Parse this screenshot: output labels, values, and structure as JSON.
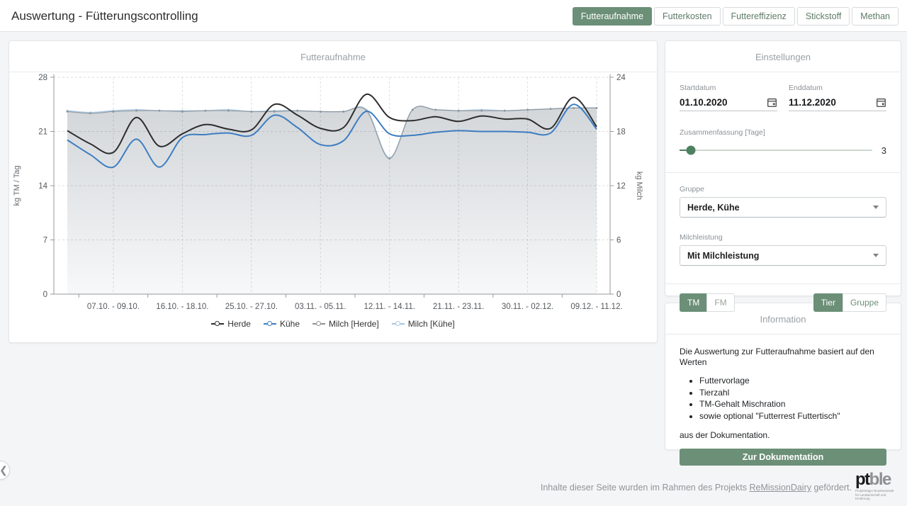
{
  "header": {
    "title": "Auswertung - Fütterungscontrolling",
    "tabs": [
      {
        "label": "Futteraufnahme",
        "active": true
      },
      {
        "label": "Futterkosten",
        "active": false
      },
      {
        "label": "Futtereffizienz",
        "active": false
      },
      {
        "label": "Stickstoff",
        "active": false
      },
      {
        "label": "Methan",
        "active": false
      }
    ]
  },
  "chart": {
    "title": "Futteraufnahme"
  },
  "chart_data": {
    "type": "line",
    "title": "Futteraufnahme",
    "ylabel_left": "kg TM / Tag",
    "ylabel_right": "kg Milch",
    "ylim_left": [
      0,
      28
    ],
    "yticks_left": [
      0,
      7,
      14,
      21,
      28
    ],
    "ylim_right": [
      0,
      24
    ],
    "yticks_right": [
      0,
      6,
      12,
      18,
      24
    ],
    "x_bins": 24,
    "x_tick_indices": [
      2,
      5,
      8,
      11,
      14,
      17,
      20,
      23
    ],
    "x_tick_labels": [
      "07.10. - 09.10.",
      "16.10. - 18.10.",
      "25.10. - 27.10.",
      "03.11. - 05.11.",
      "12.11. - 14.11.",
      "21.11. - 23.11.",
      "30.11. - 02.12.",
      "09.12. - 11.12."
    ],
    "grid": true,
    "legend_position": "bottom",
    "series": [
      {
        "name": "Herde",
        "axis": "left",
        "color": "#2d2d2d",
        "width": 2,
        "dots": false,
        "fill": null,
        "values": [
          21.1,
          19.4,
          18.3,
          22.8,
          19.1,
          20.7,
          21.9,
          21.3,
          21.2,
          24.5,
          23.1,
          21.4,
          21.5,
          25.8,
          22.8,
          22.4,
          22.9,
          22.3,
          23.0,
          22.6,
          22.6,
          21.4,
          25.4,
          21.6
        ]
      },
      {
        "name": "Kühe",
        "axis": "left",
        "color": "#3d7dc1",
        "width": 2,
        "dots": false,
        "fill": null,
        "values": [
          19.9,
          18.0,
          16.4,
          20.0,
          16.4,
          20.2,
          20.6,
          20.8,
          20.5,
          23.1,
          21.5,
          19.3,
          19.8,
          23.6,
          20.7,
          20.5,
          20.9,
          21.1,
          21.0,
          21.0,
          20.9,
          20.8,
          24.5,
          21.3
        ]
      },
      {
        "name": "Milch [Herde]",
        "axis": "right",
        "color": "#8f9499",
        "width": 1,
        "dots": true,
        "fill": "gradGray",
        "values": [
          20.2,
          20.0,
          20.2,
          20.3,
          20.3,
          20.2,
          20.3,
          20.3,
          20.2,
          20.2,
          20.3,
          20.2,
          20.2,
          20.3,
          15.0,
          20.4,
          20.4,
          20.3,
          20.3,
          20.3,
          20.4,
          20.5,
          20.6,
          20.6
        ]
      },
      {
        "name": "Milch [Kühe]",
        "axis": "right",
        "color": "#a9c7e3",
        "width": 1.5,
        "dots": true,
        "fill": "gradBlue",
        "values": [
          20.3,
          20.1,
          20.3,
          20.4,
          20.3,
          20.3,
          20.3,
          20.4,
          20.2,
          20.3,
          20.3,
          20.2,
          20.2,
          20.4,
          15.1,
          20.4,
          20.4,
          20.3,
          20.4,
          20.3,
          20.4,
          20.5,
          20.6,
          20.6
        ]
      }
    ]
  },
  "settings": {
    "title": "Einstellungen",
    "start_label": "Startdatum",
    "start_value": "01.10.2020",
    "end_label": "Enddatum",
    "end_value": "11.12.2020",
    "summary_label": "Zusammenfassung [Tage]",
    "summary_value": "3",
    "group_label": "Gruppe",
    "group_value": "Herde, Kühe",
    "milk_label": "Milchleistung",
    "milk_value": "Mit Milchleistung",
    "toggle_tm": "TM",
    "toggle_fm": "FM",
    "toggle_tier": "Tier",
    "toggle_gruppe": "Gruppe"
  },
  "info": {
    "title": "Information",
    "intro": "Die Auswertung zur Futteraufnahme basiert auf den Werten",
    "bullets": [
      "Futtervorlage",
      "Tierzahl",
      "TM-Gehalt Mischration",
      "sowie optional \"Futterrest Futtertisch\""
    ],
    "outro": "aus der Dokumentation.",
    "button": "Zur Dokumentation"
  },
  "footer": {
    "text_prefix": "Inhalte dieser Seite wurden im Rahmen des Projekts",
    "link": "ReMissionDairy",
    "text_suffix": "gefördert.",
    "logo_pt": "pt",
    "logo_ble": "ble",
    "logo_sub1": "Projektträger Bundesanstalt",
    "logo_sub2": "für Landwirtschaft und Ernährung"
  },
  "icons": {
    "chevron_left": "❮"
  },
  "colors": {
    "accent_green": "#6b8f77",
    "slider_green": "#4e8161",
    "herde": "#2d2d2d",
    "kuehe": "#3d7dc1",
    "milch_herde": "#8f9499",
    "milch_kuehe": "#a9c7e3"
  }
}
